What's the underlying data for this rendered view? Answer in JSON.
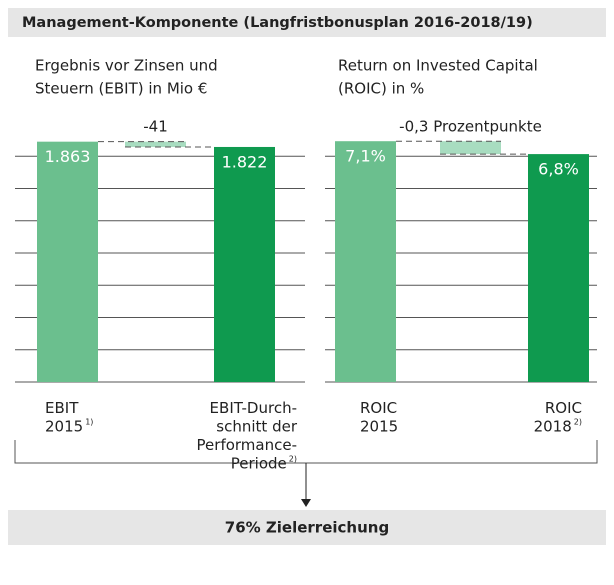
{
  "title": "Management-Komponente (Langfristbonusplan 2016-2018/19)",
  "footer": "76% Zielerreichung",
  "chart_data": [
    {
      "type": "waterfall",
      "title": [
        "Ergebnis vor Zinsen und",
        "Steuern (EBIT) in Mio €"
      ],
      "categories": [
        [
          "EBIT",
          "2015"
        ],
        [
          "EBIT-Durch-",
          "schnitt der",
          "Performance-",
          "Periode"
        ]
      ],
      "category_notes": [
        "1)",
        "2)"
      ],
      "values": [
        1863,
        1822
      ],
      "value_labels": [
        "1.863",
        "1.822"
      ],
      "change": -41,
      "change_label": "-41",
      "colors": [
        "#6bbf8e",
        "#0f9a4f"
      ],
      "change_color": "#a8dcc0",
      "ylim": [
        0,
        2000
      ],
      "yticks": [
        0,
        250,
        500,
        750,
        1000,
        1250,
        1500,
        1750
      ],
      "grid": true
    },
    {
      "type": "waterfall",
      "title": [
        "Return on Invested Capital",
        "(ROIC) in %"
      ],
      "categories": [
        [
          "ROIC",
          "2015"
        ],
        [
          "ROIC",
          "2018"
        ]
      ],
      "category_notes": [
        null,
        "2)"
      ],
      "values": [
        7.1,
        6.8
      ],
      "value_labels": [
        "7,1%",
        "6,8%"
      ],
      "change": -0.3,
      "change_label": "-0,3 Prozentpunkte",
      "colors": [
        "#6bbf8e",
        "#0f9a4f"
      ],
      "change_color": "#a8dcc0",
      "ylim": [
        1.5,
        7.5
      ],
      "yticks": [
        1.5,
        2.25,
        3,
        3.75,
        4.5,
        5.25,
        6,
        6.75
      ],
      "grid": true
    }
  ]
}
